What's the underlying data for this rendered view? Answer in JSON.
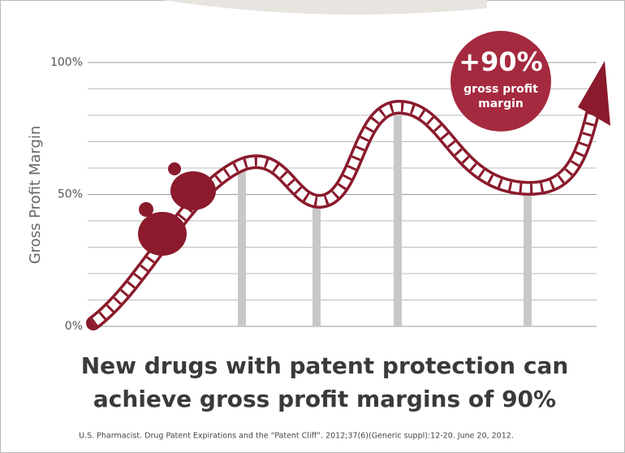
{
  "chart_data": {
    "type": "bar",
    "ylabel": "Gross Profit Margin",
    "ylim": [
      0,
      100
    ],
    "yticks": [
      {
        "value": 0,
        "label": "0%"
      },
      {
        "value": 50,
        "label": "50%"
      },
      {
        "value": 100,
        "label": "100%"
      }
    ],
    "minor_grid": [
      10,
      20,
      30,
      40,
      60,
      70,
      80,
      90
    ],
    "categories": [
      null,
      null,
      null,
      null
    ],
    "values": [
      60,
      45,
      80,
      50
    ],
    "color": "#c8c8c8",
    "badge": {
      "title": "+90%",
      "lines": [
        "gross profit",
        "margin"
      ]
    },
    "caption": [
      "New drugs with patent protection can",
      "achieve gross profit margins of 90%"
    ],
    "source": "U.S. Pharmacist. Drug Patent Expirations and the “Patent Cliff”. 2012;37(6)(Generic suppl):12-20. June 20, 2012."
  }
}
